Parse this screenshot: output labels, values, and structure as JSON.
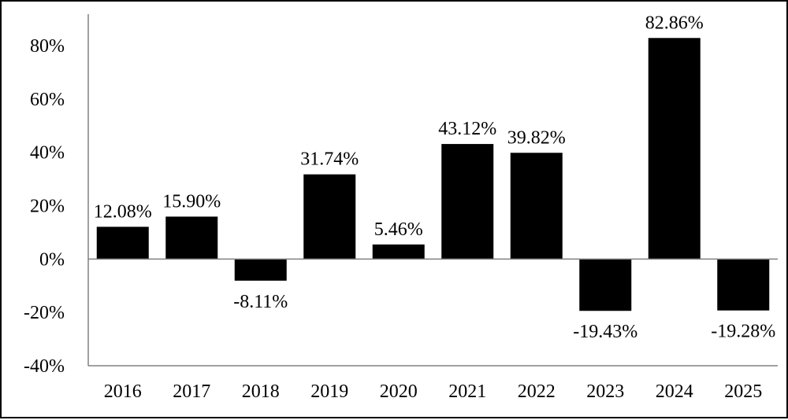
{
  "chart_data": {
    "type": "bar",
    "title": "",
    "xlabel": "",
    "ylabel": "",
    "categories": [
      "2016",
      "2017",
      "2018",
      "2019",
      "2020",
      "2021",
      "2022",
      "2023",
      "2024",
      "2025"
    ],
    "values": [
      12.08,
      15.9,
      -8.11,
      31.74,
      5.46,
      43.12,
      39.82,
      -19.43,
      82.86,
      -19.28
    ],
    "data_labels": [
      "12.08%",
      "15.90%",
      "-8.11%",
      "31.74%",
      "5.46%",
      "43.12%",
      "39.82%",
      "-19.43%",
      "82.86%",
      "-19.28%"
    ],
    "ylim": [
      -40,
      80
    ],
    "yticks": [
      80,
      60,
      40,
      20,
      0,
      -20,
      -40
    ],
    "ytick_labels": [
      "80%",
      "60%",
      "40%",
      "20%",
      "0%",
      "-20%",
      "-40%"
    ],
    "grid": false,
    "legend": "none",
    "bar_color": "#000000"
  }
}
